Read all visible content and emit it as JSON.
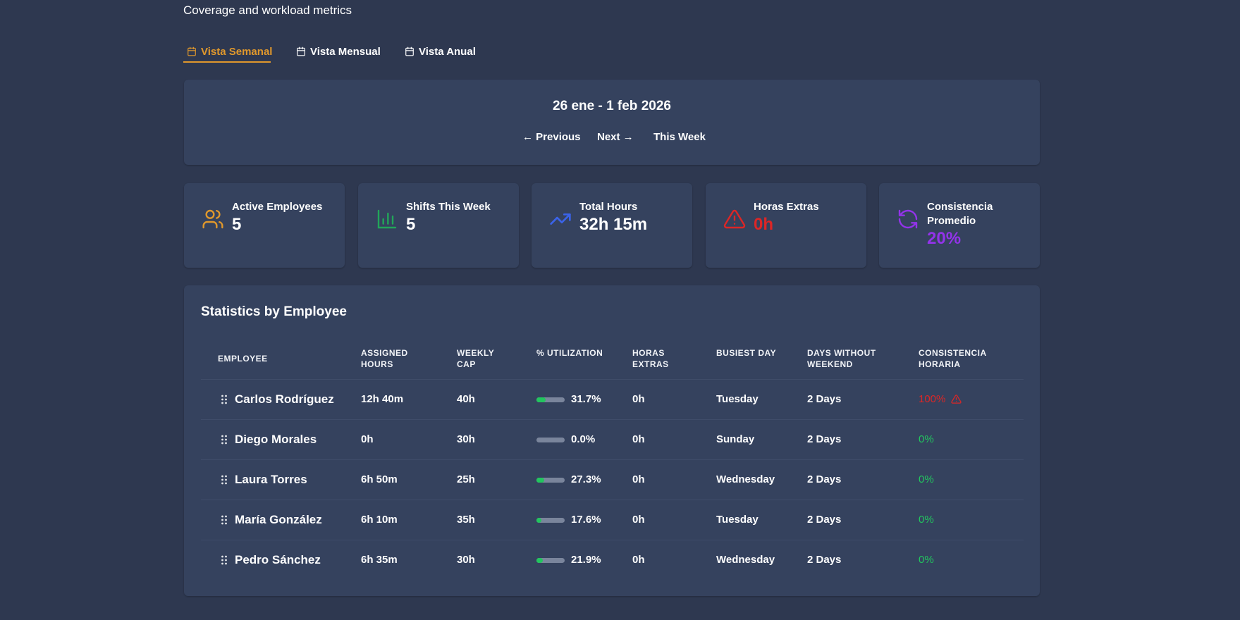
{
  "header": {
    "title": "Coverage and workload metrics"
  },
  "tabs": [
    {
      "label": "Vista Semanal",
      "active": true
    },
    {
      "label": "Vista Mensual",
      "active": false
    },
    {
      "label": "Vista Anual",
      "active": false
    }
  ],
  "period": {
    "title": "26 ene - 1 feb 2026",
    "nav": [
      "← Previous",
      "Next →",
      "This Week"
    ]
  },
  "stats": [
    {
      "label": "Active Employees",
      "value": "5",
      "icon_color": "#e0982c",
      "value_color": "#ffffff"
    },
    {
      "label": "Shifts This Week",
      "value": "5",
      "icon_color": "#22a559",
      "value_color": "#ffffff"
    },
    {
      "label": "Total Hours",
      "value": "32h 15m",
      "icon_color": "#3b63e8",
      "value_color": "#ffffff"
    },
    {
      "label": "Horas Extras",
      "value": "0h",
      "icon_color": "#dc2626",
      "value_color": "#dc2626"
    },
    {
      "label": "Consistencia Promedio",
      "value": "20%",
      "icon_color": "#9333ea",
      "value_color": "#9333ea"
    }
  ],
  "table": {
    "title": "Statistics by Employee",
    "columns": [
      "EMPLOYEE",
      "ASSIGNED HOURS",
      "WEEKLY CAP",
      "% UTILIZATION",
      "HORAS EXTRAS",
      "BUSIEST DAY",
      "DAYS WITHOUT WEEKEND",
      "CONSISTENCIA HORARIA"
    ],
    "rows": [
      {
        "cells": [
          "Carlos Rodríguez",
          "12h 40m",
          "40h",
          {
            "value": 31.7,
            "label": "31.7%"
          },
          "0h",
          "Tuesday",
          "2 Days",
          "100%"
        ],
        "consistency_color": "#dc2626",
        "warning": true
      },
      {
        "cells": [
          "Diego Morales",
          "0h",
          "30h",
          {
            "value": 0.0,
            "label": "0.0%"
          },
          "0h",
          "Sunday",
          "2 Days",
          "0%"
        ],
        "consistency_color": "#22c55e",
        "warning": false
      },
      {
        "cells": [
          "Laura Torres",
          "6h 50m",
          "25h",
          {
            "value": 27.3,
            "label": "27.3%"
          },
          "0h",
          "Wednesday",
          "2 Days",
          "0%"
        ],
        "consistency_color": "#22c55e",
        "warning": false
      },
      {
        "cells": [
          "María González",
          "6h 10m",
          "35h",
          {
            "value": 17.6,
            "label": "17.6%"
          },
          "0h",
          "Tuesday",
          "2 Days",
          "0%"
        ],
        "consistency_color": "#22c55e",
        "warning": false
      },
      {
        "cells": [
          "Pedro Sánchez",
          "6h 35m",
          "30h",
          {
            "value": 21.9,
            "label": "21.9%"
          },
          "0h",
          "Wednesday",
          "2 Days",
          "0%"
        ],
        "consistency_color": "#22c55e",
        "warning": false
      }
    ]
  }
}
